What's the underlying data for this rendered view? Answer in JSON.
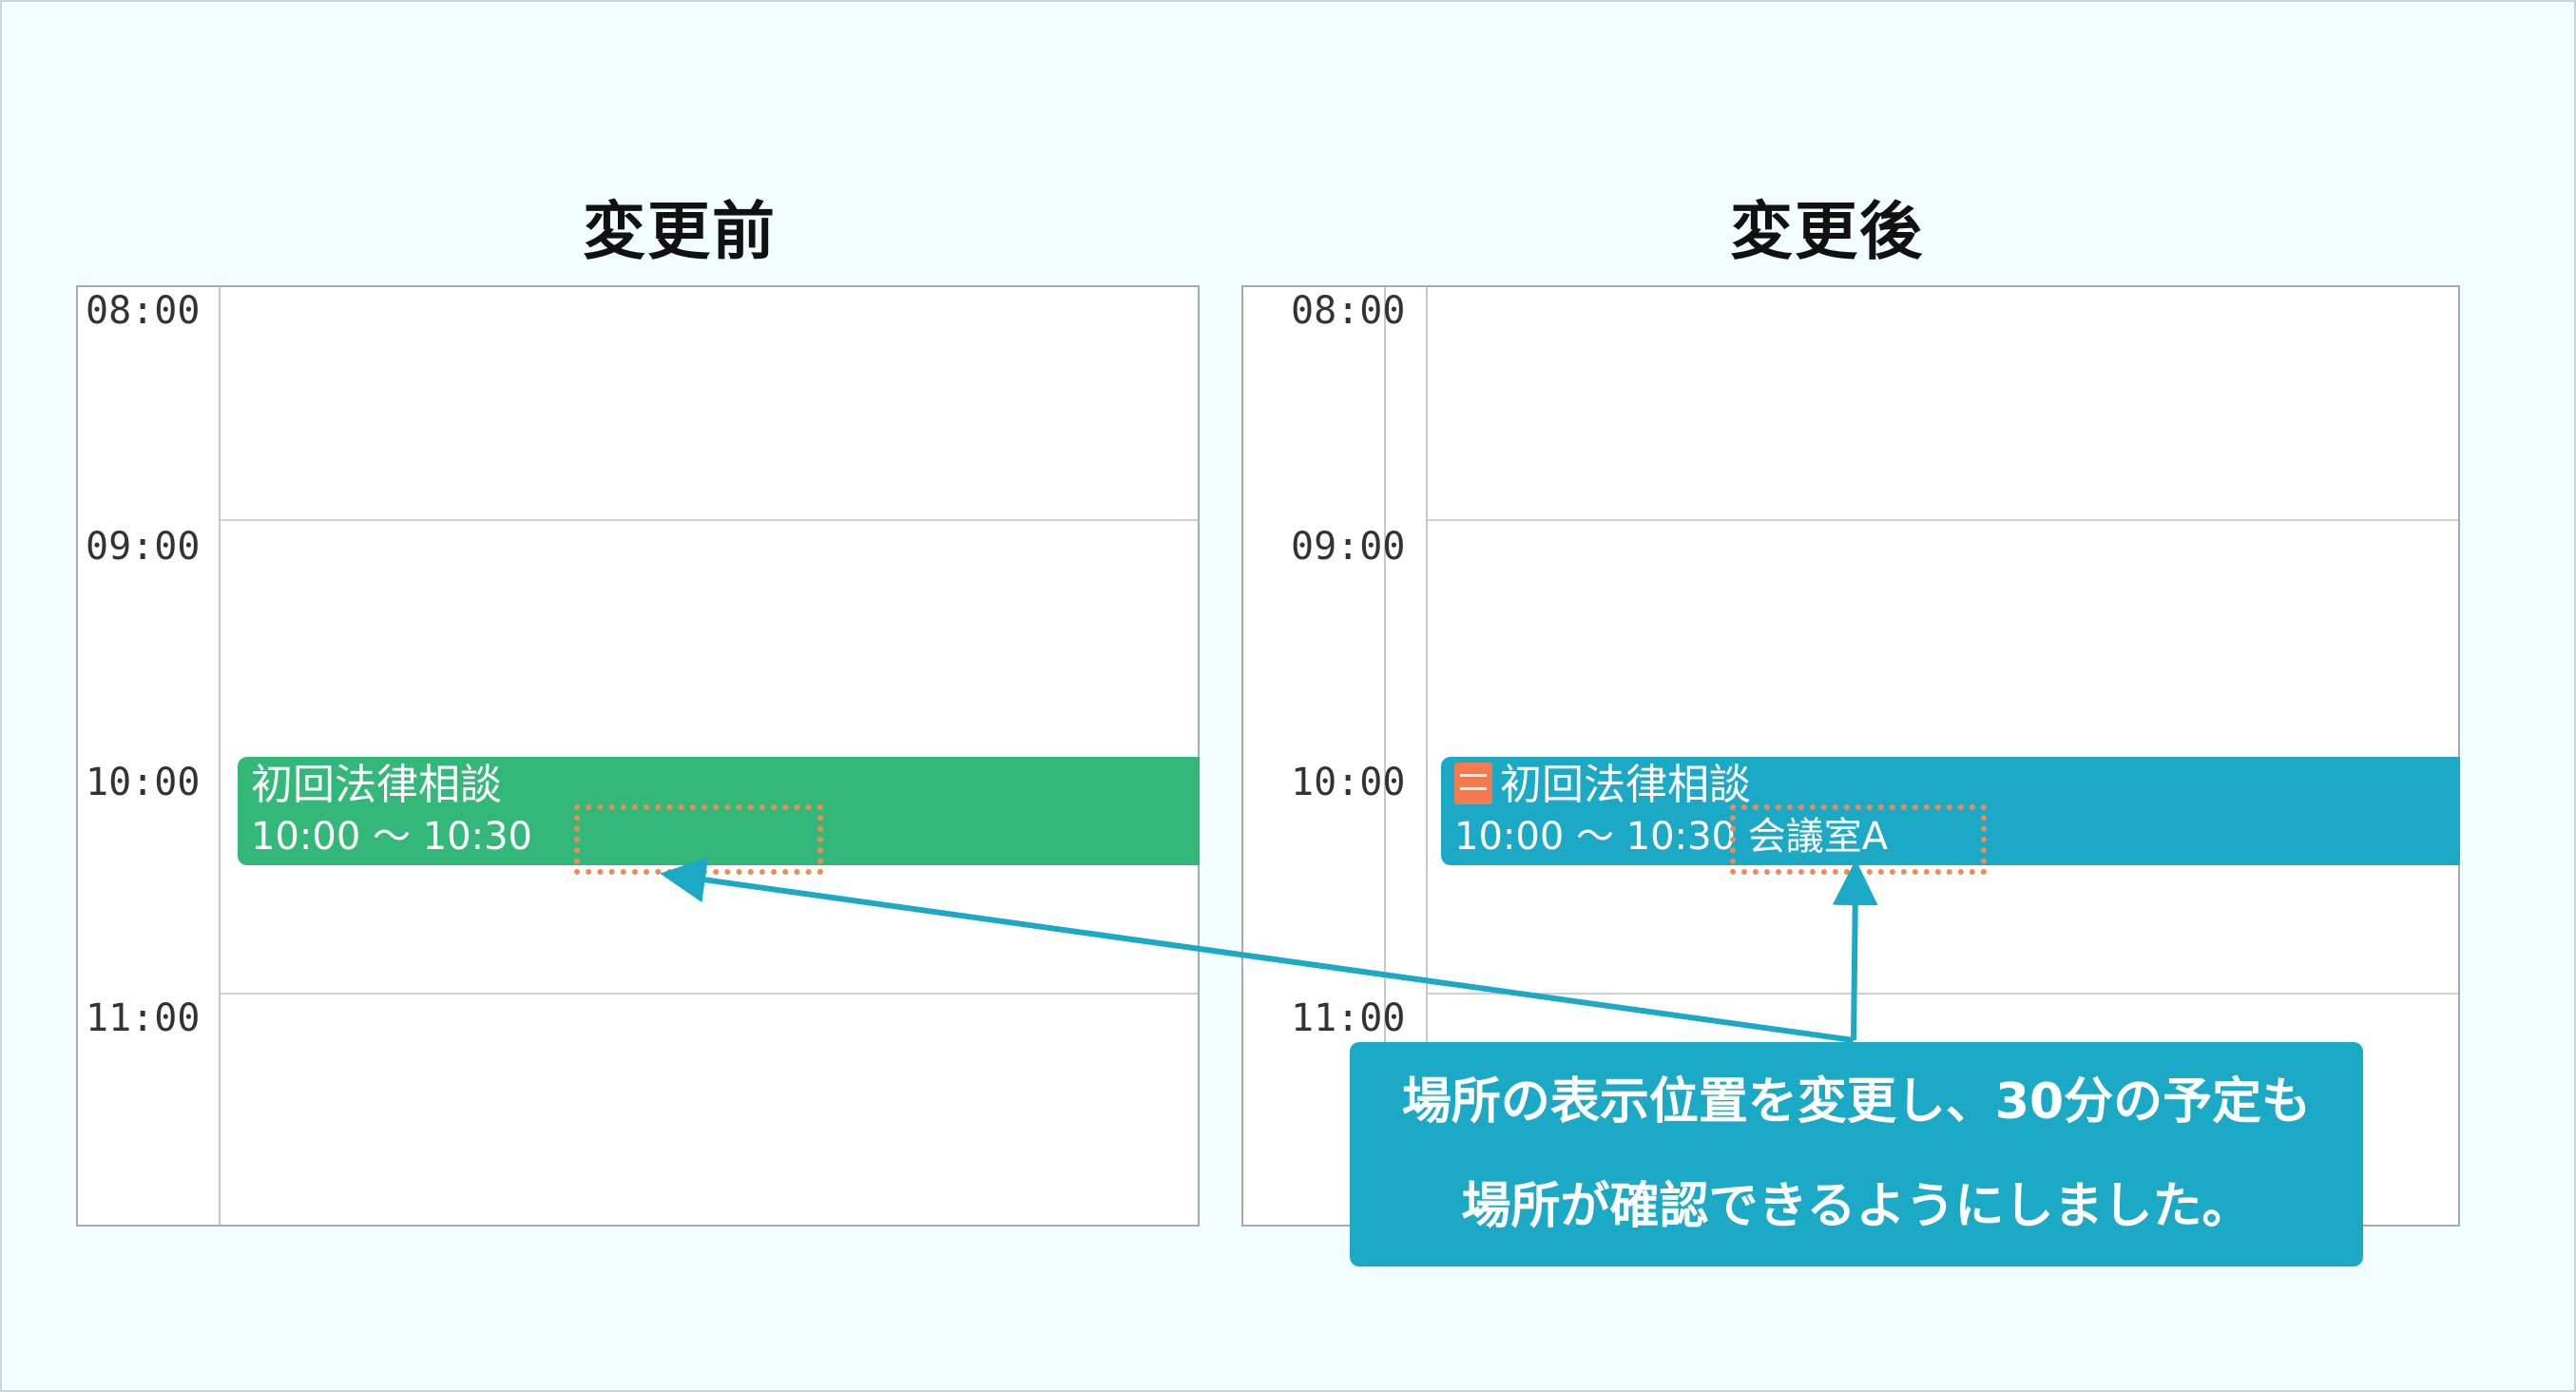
{
  "before": {
    "heading": "変更前",
    "times": [
      "08:00",
      "09:00",
      "10:00",
      "11:00"
    ],
    "event": {
      "title": "初回法律相談",
      "time": "10:00 ～ 10:30",
      "color": "#34b87a"
    }
  },
  "after": {
    "heading": "変更後",
    "times": [
      "08:00",
      "09:00",
      "10:00",
      "11:00"
    ],
    "event": {
      "icon": "room-icon",
      "title": "初回法律相談",
      "time": "10:00 ～ 10:30",
      "location": "会議室A",
      "color": "#1ba9c6"
    }
  },
  "callout": {
    "line1": "場所の表示位置を変更し、30分の予定も",
    "line2": "場所が確認できるようにしました。",
    "color": "#1ba9c6"
  },
  "highlight_color": "#f08a57"
}
